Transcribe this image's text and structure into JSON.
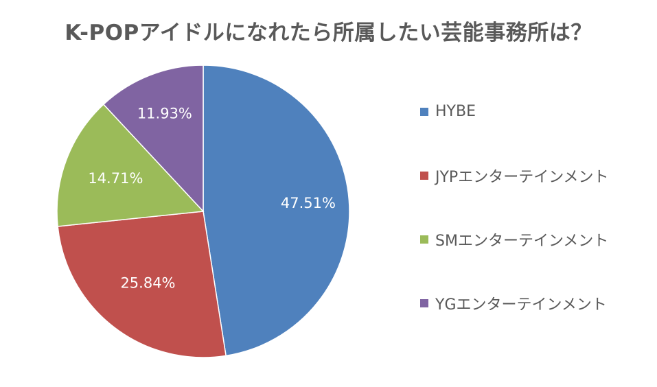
{
  "chart_data": {
    "type": "pie",
    "title": "K-POPアイドルになれたら所属したい芸能事務所は？",
    "categories": [
      "HYBE",
      "JYPエンターテインメント",
      "SMエンターテインメント",
      "YGエンターテインメント"
    ],
    "values": [
      47.51,
      25.84,
      14.71,
      11.93
    ],
    "value_labels": [
      "47.51%",
      "25.84%",
      "14.71%",
      "11.93%"
    ],
    "colors": [
      "#4f81bd",
      "#c0504d",
      "#9bbb59",
      "#8064a2"
    ],
    "legend_position": "right",
    "start_angle": "top",
    "direction": "clockwise"
  }
}
